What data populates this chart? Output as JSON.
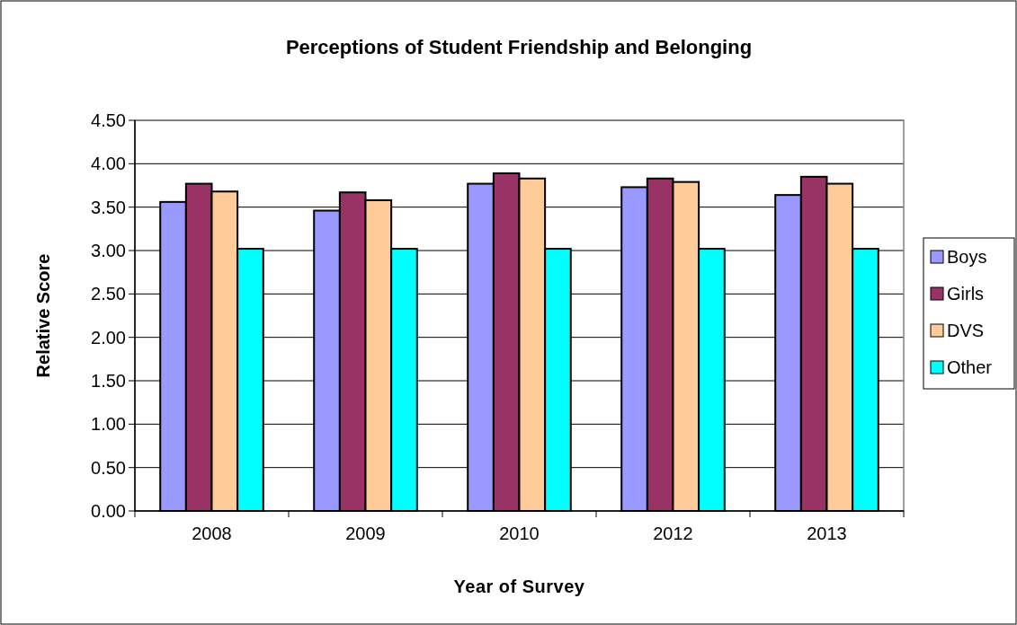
{
  "chart_data": {
    "type": "bar",
    "title": "Perceptions of Student Friendship and Belonging",
    "xlabel": "Year of Survey",
    "ylabel": "Relative Score",
    "categories": [
      "2008",
      "2009",
      "2010",
      "2012",
      "2013"
    ],
    "series": [
      {
        "name": "Boys",
        "color": "#9999ff",
        "values": [
          3.56,
          3.46,
          3.77,
          3.73,
          3.64
        ]
      },
      {
        "name": "Girls",
        "color": "#993366",
        "values": [
          3.77,
          3.67,
          3.89,
          3.83,
          3.85
        ]
      },
      {
        "name": "DVS",
        "color": "#ffcc99",
        "values": [
          3.68,
          3.58,
          3.83,
          3.79,
          3.77
        ]
      },
      {
        "name": "Other",
        "color": "#00ffff",
        "values": [
          3.02,
          3.02,
          3.02,
          3.02,
          3.02
        ]
      }
    ],
    "ylim": [
      0,
      4.5
    ],
    "yticks": [
      {
        "value": 0,
        "label": "0.00"
      },
      {
        "value": 0.5,
        "label": "0.50"
      },
      {
        "value": 1,
        "label": "1.00"
      },
      {
        "value": 1.5,
        "label": "1.50"
      },
      {
        "value": 2,
        "label": "2.00"
      },
      {
        "value": 2.5,
        "label": "2.50"
      },
      {
        "value": 3,
        "label": "3.00"
      },
      {
        "value": 3.5,
        "label": "3.50"
      },
      {
        "value": 4,
        "label": "4.00"
      },
      {
        "value": 4.5,
        "label": "4.50"
      }
    ],
    "grid": "y",
    "legend": "right"
  }
}
